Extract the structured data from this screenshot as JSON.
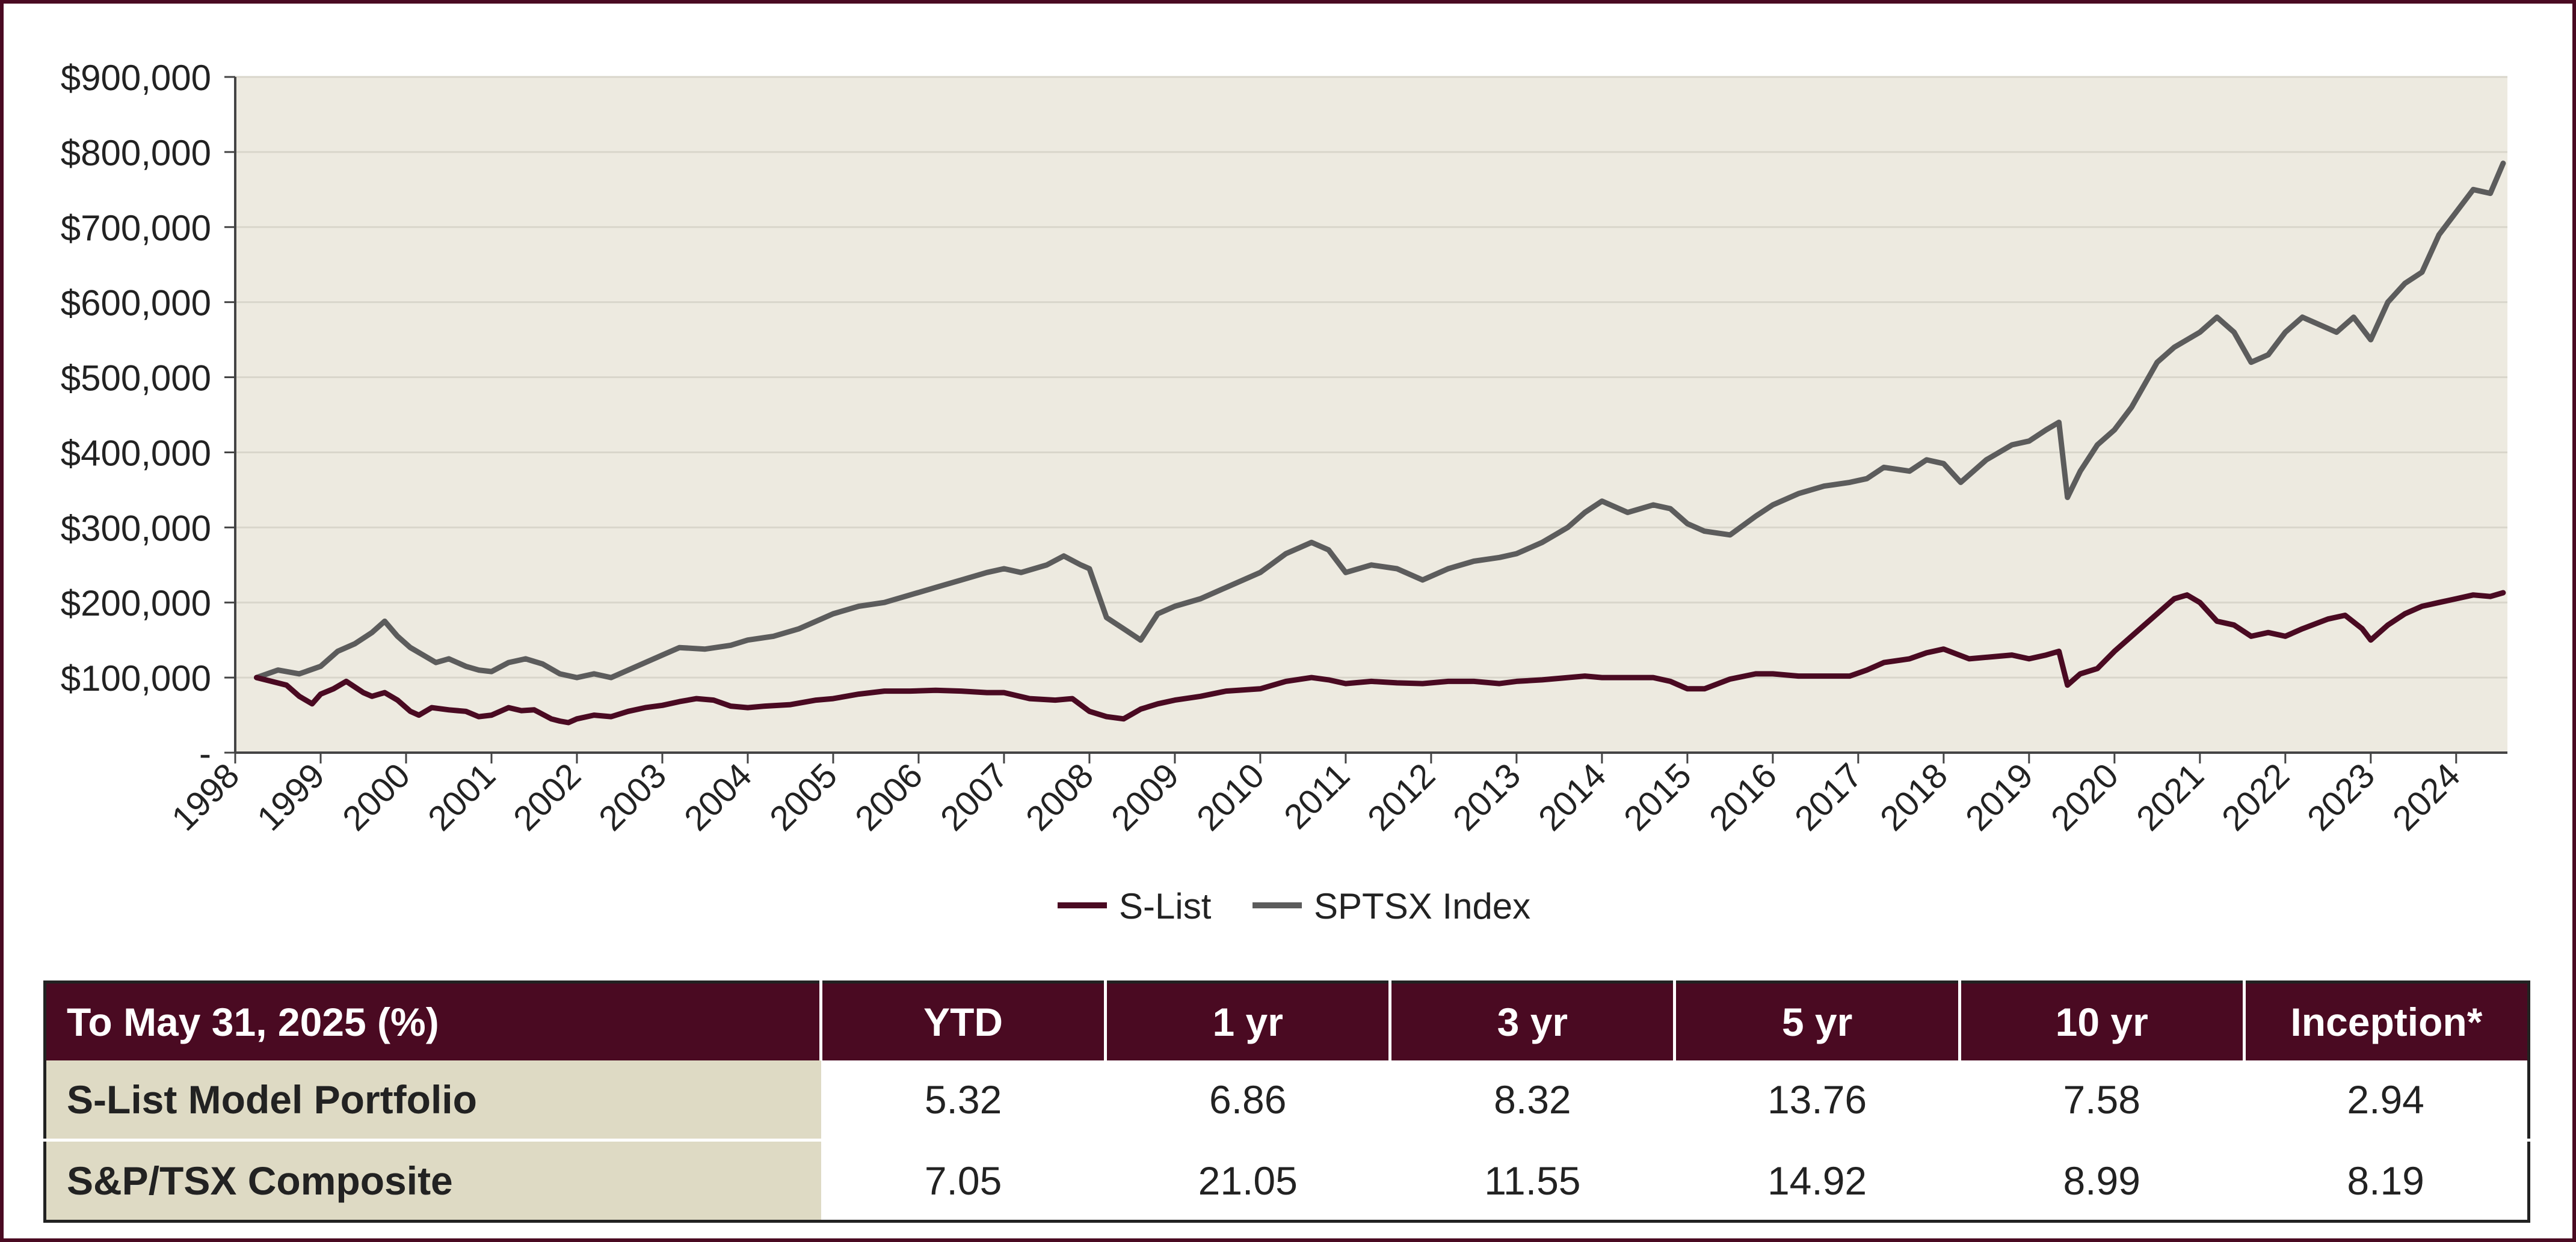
{
  "colors": {
    "accent": "#4a0a22",
    "plot_background": "#edeae0",
    "slist_line": "#4a0a22",
    "index_line": "#5c5c5c",
    "label_cell": "#dedac4"
  },
  "chart_data": {
    "type": "line",
    "title": "",
    "xlabel": "",
    "ylabel": "",
    "xlim": [
      1998.0,
      2024.6
    ],
    "ylim": [
      0,
      900000
    ],
    "yticks": [
      0,
      100000,
      200000,
      300000,
      400000,
      500000,
      600000,
      700000,
      800000,
      900000
    ],
    "ytick_labels": [
      "-",
      "$100,000",
      "$200,000",
      "$300,000",
      "$400,000",
      "$500,000",
      "$600,000",
      "$700,000",
      "$800,000",
      "$900,000"
    ],
    "xticks": [
      1998,
      1999,
      2000,
      2001,
      2002,
      2003,
      2004,
      2005,
      2006,
      2007,
      2008,
      2009,
      2010,
      2011,
      2012,
      2013,
      2014,
      2015,
      2016,
      2017,
      2018,
      2019,
      2020,
      2021,
      2022,
      2023,
      2024
    ],
    "xtick_labels": [
      "1998",
      "1999",
      "2000",
      "2001",
      "2002",
      "2003",
      "2004",
      "2005",
      "2006",
      "2007",
      "2008",
      "2009",
      "2010",
      "2011",
      "2012",
      "2013",
      "2014",
      "2015",
      "2016",
      "2017",
      "2018",
      "2019",
      "2020",
      "2021",
      "2022",
      "2023",
      "2024"
    ],
    "grid": true,
    "legend": "bottom-center",
    "series": [
      {
        "name": "S-List",
        "color": "#4a0a22",
        "x": [
          1998.25,
          1998.6,
          1998.75,
          1998.9,
          1999.0,
          1999.15,
          1999.3,
          1999.5,
          1999.6,
          1999.75,
          1999.9,
          2000.05,
          2000.15,
          2000.3,
          2000.5,
          2000.7,
          2000.85,
          2001.0,
          2001.2,
          2001.35,
          2001.5,
          2001.7,
          2001.8,
          2001.9,
          2002.0,
          2002.2,
          2002.4,
          2002.6,
          2002.8,
          2003.0,
          2003.2,
          2003.4,
          2003.6,
          2003.8,
          2004.0,
          2004.2,
          2004.5,
          2004.8,
          2005.0,
          2005.3,
          2005.6,
          2005.9,
          2006.2,
          2006.5,
          2006.8,
          2007.0,
          2007.3,
          2007.6,
          2007.8,
          2008.0,
          2008.2,
          2008.4,
          2008.6,
          2008.8,
          2009.0,
          2009.3,
          2009.6,
          2010.0,
          2010.3,
          2010.6,
          2010.8,
          2011.0,
          2011.3,
          2011.6,
          2011.9,
          2012.2,
          2012.5,
          2012.8,
          2013.0,
          2013.3,
          2013.6,
          2013.8,
          2014.0,
          2014.3,
          2014.6,
          2014.8,
          2015.0,
          2015.2,
          2015.5,
          2015.8,
          2016.0,
          2016.3,
          2016.6,
          2016.9,
          2017.1,
          2017.3,
          2017.6,
          2017.8,
          2018.0,
          2018.3,
          2018.6,
          2018.8,
          2019.0,
          2019.2,
          2019.35,
          2019.45,
          2019.6,
          2019.8,
          2020.0,
          2020.2,
          2020.5,
          2020.7,
          2020.85,
          2021.0,
          2021.2,
          2021.4,
          2021.6,
          2021.8,
          2022.0,
          2022.2,
          2022.5,
          2022.7,
          2022.9,
          2023.0,
          2023.2,
          2023.4,
          2023.6,
          2023.8,
          2024.0,
          2024.2,
          2024.4,
          2024.55
        ],
        "values": [
          100000,
          90000,
          75000,
          65000,
          78000,
          85000,
          95000,
          80000,
          75000,
          80000,
          70000,
          55000,
          50000,
          60000,
          57000,
          55000,
          48000,
          50000,
          60000,
          56000,
          57000,
          45000,
          42000,
          40000,
          45000,
          50000,
          48000,
          55000,
          60000,
          63000,
          68000,
          72000,
          70000,
          62000,
          60000,
          62000,
          64000,
          70000,
          72000,
          78000,
          82000,
          82000,
          83000,
          82000,
          80000,
          80000,
          72000,
          70000,
          72000,
          55000,
          48000,
          45000,
          58000,
          65000,
          70000,
          75000,
          82000,
          85000,
          95000,
          100000,
          97000,
          92000,
          95000,
          93000,
          92000,
          95000,
          95000,
          92000,
          95000,
          97000,
          100000,
          102000,
          100000,
          100000,
          100000,
          95000,
          85000,
          85000,
          98000,
          105000,
          105000,
          102000,
          102000,
          102000,
          110000,
          120000,
          125000,
          133000,
          138000,
          125000,
          128000,
          130000,
          125000,
          130000,
          135000,
          90000,
          105000,
          112000,
          135000,
          155000,
          185000,
          205000,
          210000,
          200000,
          175000,
          170000,
          155000,
          160000,
          155000,
          165000,
          178000,
          183000,
          165000,
          150000,
          170000,
          185000,
          195000,
          200000,
          205000,
          210000,
          208000,
          213000
        ]
      },
      {
        "name": "SPTSX Index",
        "color": "#5c5c5c",
        "x": [
          1998.25,
          1998.5,
          1998.75,
          1999.0,
          1999.2,
          1999.4,
          1999.6,
          1999.75,
          1999.9,
          2000.05,
          2000.2,
          2000.35,
          2000.5,
          2000.7,
          2000.85,
          2001.0,
          2001.2,
          2001.4,
          2001.6,
          2001.8,
          2002.0,
          2002.2,
          2002.4,
          2002.6,
          2002.8,
          2003.0,
          2003.2,
          2003.5,
          2003.8,
          2004.0,
          2004.3,
          2004.6,
          2004.9,
          2005.0,
          2005.3,
          2005.6,
          2005.9,
          2006.2,
          2006.5,
          2006.8,
          2007.0,
          2007.2,
          2007.5,
          2007.7,
          2007.9,
          2008.0,
          2008.2,
          2008.4,
          2008.6,
          2008.8,
          2009.0,
          2009.3,
          2009.6,
          2010.0,
          2010.3,
          2010.6,
          2010.8,
          2011.0,
          2011.3,
          2011.6,
          2011.9,
          2012.2,
          2012.5,
          2012.8,
          2013.0,
          2013.3,
          2013.6,
          2013.8,
          2014.0,
          2014.3,
          2014.6,
          2014.8,
          2015.0,
          2015.2,
          2015.5,
          2015.8,
          2016.0,
          2016.3,
          2016.6,
          2016.9,
          2017.1,
          2017.3,
          2017.6,
          2017.8,
          2018.0,
          2018.2,
          2018.5,
          2018.8,
          2019.0,
          2019.2,
          2019.35,
          2019.45,
          2019.6,
          2019.8,
          2020.0,
          2020.2,
          2020.5,
          2020.7,
          2020.85,
          2021.0,
          2021.2,
          2021.3,
          2021.4,
          2021.6,
          2021.8,
          2022.0,
          2022.2,
          2022.4,
          2022.6,
          2022.8,
          2023.0,
          2023.2,
          2023.4,
          2023.6,
          2023.8,
          2024.0,
          2024.2,
          2024.4,
          2024.55
        ],
        "values": [
          100000,
          110000,
          105000,
          115000,
          135000,
          145000,
          160000,
          175000,
          155000,
          140000,
          130000,
          120000,
          125000,
          115000,
          110000,
          108000,
          120000,
          125000,
          118000,
          105000,
          100000,
          105000,
          100000,
          110000,
          120000,
          130000,
          140000,
          138000,
          143000,
          150000,
          155000,
          165000,
          180000,
          185000,
          195000,
          200000,
          210000,
          220000,
          230000,
          240000,
          245000,
          240000,
          250000,
          262000,
          250000,
          245000,
          180000,
          165000,
          150000,
          185000,
          195000,
          205000,
          220000,
          240000,
          265000,
          280000,
          270000,
          240000,
          250000,
          245000,
          230000,
          245000,
          255000,
          260000,
          265000,
          280000,
          300000,
          320000,
          335000,
          320000,
          330000,
          325000,
          305000,
          295000,
          290000,
          315000,
          330000,
          345000,
          355000,
          360000,
          365000,
          380000,
          375000,
          390000,
          385000,
          360000,
          390000,
          410000,
          415000,
          430000,
          440000,
          340000,
          375000,
          410000,
          430000,
          460000,
          520000,
          540000,
          550000,
          560000,
          580000,
          570000,
          560000,
          520000,
          530000,
          560000,
          580000,
          570000,
          560000,
          580000,
          550000,
          600000,
          625000,
          640000,
          690000,
          720000,
          750000,
          745000,
          785000
        ]
      }
    ]
  },
  "table": {
    "header": [
      "To May 31, 2025 (%)",
      "YTD",
      "1 yr",
      "3 yr",
      "5 yr",
      "10 yr",
      "Inception*"
    ],
    "rows": [
      {
        "label": "S-List Model Portfolio",
        "values": [
          "5.32",
          "6.86",
          "8.32",
          "13.76",
          "7.58",
          "2.94"
        ]
      },
      {
        "label": "S&P/TSX Composite",
        "values": [
          "7.05",
          "21.05",
          "11.55",
          "14.92",
          "8.99",
          "8.19"
        ]
      }
    ]
  }
}
